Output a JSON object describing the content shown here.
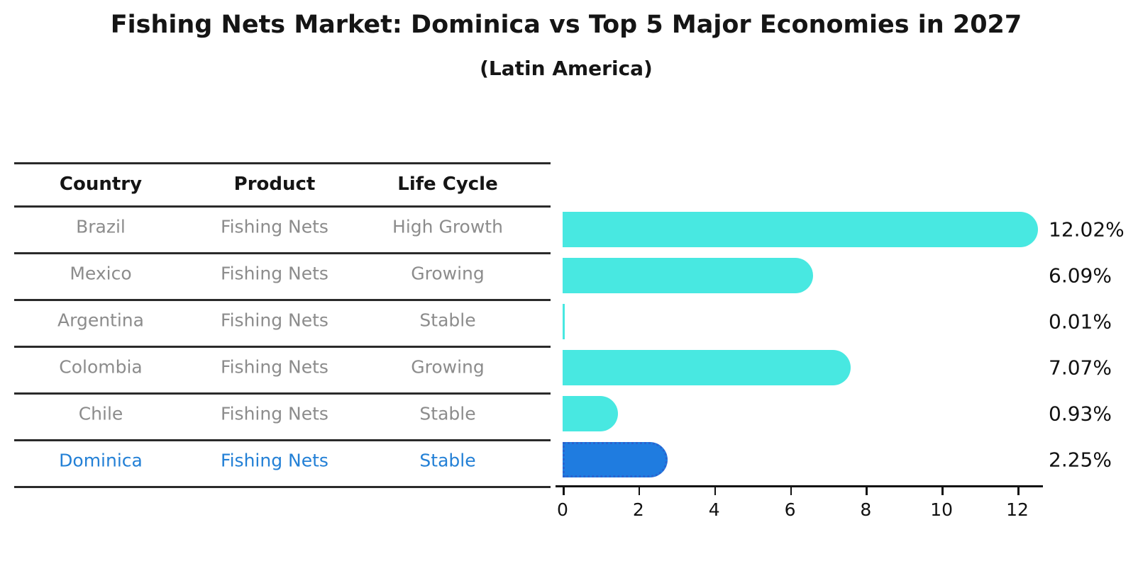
{
  "title": "Fishing Nets Market: Dominica vs Top 5 Major Economies in 2027",
  "subtitle": "(Latin America)",
  "table": {
    "headers": [
      "Country",
      "Product",
      "Life Cycle"
    ],
    "rows": [
      {
        "country": "Brazil",
        "product": "Fishing Nets",
        "life_cycle": "High Growth",
        "highlight": false
      },
      {
        "country": "Mexico",
        "product": "Fishing Nets",
        "life_cycle": "Growing",
        "highlight": false
      },
      {
        "country": "Argentina",
        "product": "Fishing Nets",
        "life_cycle": "Stable",
        "highlight": false
      },
      {
        "country": "Colombia",
        "product": "Fishing Nets",
        "life_cycle": "Growing",
        "highlight": false
      },
      {
        "country": "Chile",
        "product": "Fishing Nets",
        "life_cycle": "Stable",
        "highlight": false
      },
      {
        "country": "Dominica",
        "product": "Fishing Nets",
        "life_cycle": "Stable",
        "highlight": true
      }
    ]
  },
  "chart_data": {
    "type": "bar",
    "orientation": "horizontal",
    "title": "Fishing Nets Market: Dominica vs Top 5 Major Economies in 2027",
    "subtitle": "(Latin America)",
    "categories": [
      "Brazil",
      "Mexico",
      "Argentina",
      "Colombia",
      "Chile",
      "Dominica"
    ],
    "values": [
      12.02,
      6.09,
      0.01,
      7.07,
      0.93,
      2.25
    ],
    "value_labels": [
      "12.02%",
      "6.09%",
      "0.01%",
      "7.07%",
      "0.93%",
      "2.25%"
    ],
    "xticks": [
      0,
      2,
      4,
      6,
      8,
      10,
      12
    ],
    "xlim": [
      0,
      12.6
    ],
    "grid": false,
    "legend": false,
    "highlight_index": 5
  },
  "colors": {
    "bar": "#48e8e1",
    "highlight_bar": "#1f7ce0",
    "highlight_border": "#2a63cf",
    "table_text": "#8c8c8c",
    "highlight_text": "#2380d6",
    "line": "#2a2a2a",
    "axis": "#111111"
  }
}
